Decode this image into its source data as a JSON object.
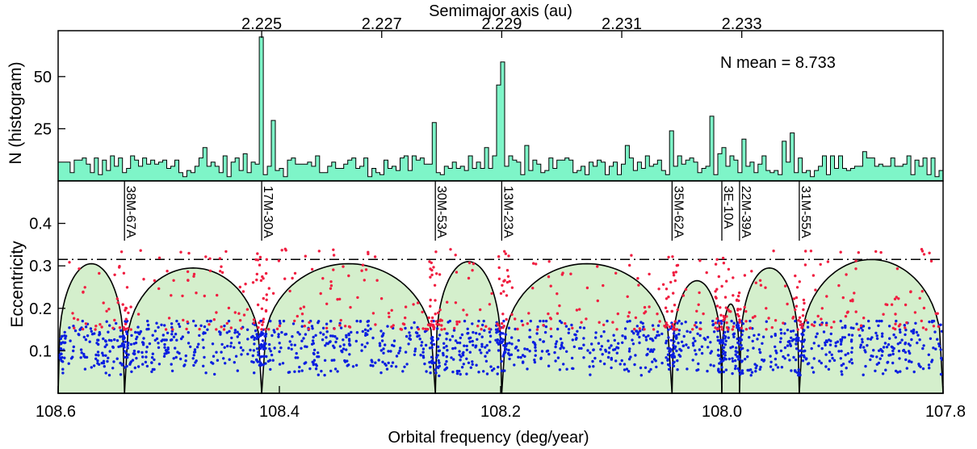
{
  "colors": {
    "histogram_fill": "#7ef5c8",
    "stable_region_fill": "#d4efcc",
    "low_ecc_points": "#0a1fe0",
    "high_ecc_points": "#f01e40",
    "axes": "#000000"
  },
  "chart_data": [
    {
      "type": "bar",
      "panel": "histogram",
      "top_xlabel": "Semimajor axis (au)",
      "top_ticks": [
        "2.225",
        "2.227",
        "2.229",
        "2.231",
        "2.233"
      ],
      "top_tick_values": [
        2.225,
        2.227,
        2.229,
        2.231,
        2.233
      ],
      "ylabel": "N (histogram)",
      "yticks": [
        "25",
        "50"
      ],
      "ylim": [
        0,
        72
      ],
      "annotation": "N mean = 8.733",
      "mean": 8.733,
      "peaks": [
        {
          "x": 108.415,
          "value": 69
        },
        {
          "x": 108.405,
          "value": 29
        },
        {
          "x": 108.26,
          "value": 28
        },
        {
          "x": 108.198,
          "value": 57
        },
        {
          "x": 108.202,
          "value": 46
        },
        {
          "x": 108.045,
          "value": 24
        },
        {
          "x": 108.01,
          "value": 31
        },
        {
          "x": 107.98,
          "value": 20
        },
        {
          "x": 107.937,
          "value": 23
        }
      ]
    },
    {
      "type": "scatter",
      "panel": "eccentricity",
      "xlabel": "Orbital frequency (deg/year)",
      "ylabel": "Eccentricity",
      "xlim": [
        108.6,
        107.8
      ],
      "xticks": [
        "108.6",
        "108.4",
        "108.2",
        "108.0",
        "107.8"
      ],
      "ylim": [
        0.0,
        0.5
      ],
      "yticks": [
        "0.1",
        "0.2",
        "0.3",
        "0.4"
      ],
      "dash_dot_threshold": 0.315,
      "series": [
        {
          "color_key": "low_ecc_points",
          "e_range": [
            0.02,
            0.17
          ]
        },
        {
          "color_key": "high_ecc_points",
          "e_range": [
            0.15,
            0.34
          ]
        }
      ],
      "resonances": [
        {
          "label": "38M-67A",
          "x": 108.54
        },
        {
          "label": "17M-30A",
          "x": 108.416
        },
        {
          "label": "30M-53A",
          "x": 108.259
        },
        {
          "label": "13M-23A",
          "x": 108.199
        },
        {
          "label": "35M-62A",
          "x": 108.045
        },
        {
          "label": "3E-10A",
          "x": 108.0
        },
        {
          "label": "22M-39A",
          "x": 107.984
        },
        {
          "label": "31M-55A",
          "x": 107.93
        }
      ],
      "resonance_arches": [
        {
          "from": 108.6,
          "to": 108.54,
          "peak": 0.305
        },
        {
          "from": 108.54,
          "to": 108.416,
          "peak": 0.295
        },
        {
          "from": 108.416,
          "to": 108.259,
          "peak": 0.305
        },
        {
          "from": 108.259,
          "to": 108.199,
          "peak": 0.31
        },
        {
          "from": 108.199,
          "to": 108.045,
          "peak": 0.305
        },
        {
          "from": 108.045,
          "to": 108.0,
          "peak": 0.265
        },
        {
          "from": 108.0,
          "to": 107.984,
          "peak": 0.21
        },
        {
          "from": 107.984,
          "to": 107.93,
          "peak": 0.295
        },
        {
          "from": 107.93,
          "to": 107.8,
          "peak": 0.315
        }
      ]
    }
  ]
}
